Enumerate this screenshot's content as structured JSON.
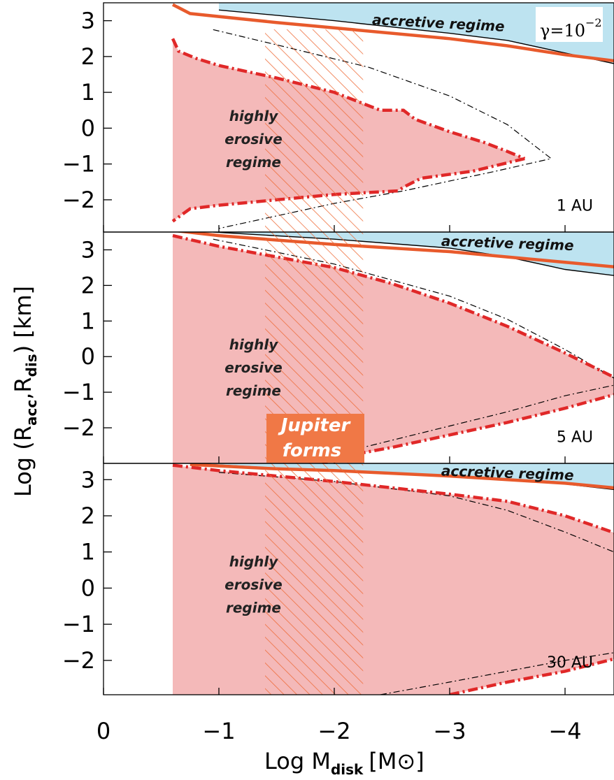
{
  "chart_data": {
    "type": "line",
    "x_axis": {
      "ticks": [
        0,
        -1,
        -2,
        -3,
        -4
      ],
      "tick_labels": [
        "0",
        "−1",
        "−2",
        "−3",
        "−4"
      ],
      "range": [
        0,
        -4.5
      ],
      "label_main": "Log M",
      "label_sub": "disk",
      "label_unit": "[M⊙]"
    },
    "y_axis": {
      "label_main": "Log (R",
      "label_sub1": "acc",
      "label_mid": ",R",
      "label_sub2": "dis",
      "label_end": ") [km]"
    },
    "jupiter_band": {
      "x_range": [
        -1.4,
        -2.25
      ],
      "label_line1": "Jupiter",
      "label_line2": "forms"
    },
    "colors": {
      "accretive_fill": "#bde3f0",
      "erosive_fill": "#f4b9b9",
      "thick_line": "#e85a2c",
      "dash_dot": "#e02828",
      "hatch": "#ee6a35",
      "jupiter_box": "#f07846",
      "thin_line": "#000000"
    },
    "panels": [
      {
        "id": "1au",
        "ylim": [
          -2.9,
          3.5
        ],
        "yticks": [
          3,
          2,
          1,
          0,
          -1,
          -2
        ],
        "ytick_labels": [
          "3",
          "2",
          "1",
          "0",
          "−1",
          "−2"
        ],
        "au_label": "1  AU",
        "accretive_label": "accretive regime",
        "erosive_label": [
          "highly",
          "erosive",
          "regime"
        ],
        "gamma": {
          "base": "γ=10",
          "exponent": "−2"
        },
        "erosive_upper": [
          [
            -0.6,
            2.5
          ],
          [
            -0.65,
            2.15
          ],
          [
            -0.8,
            1.95
          ],
          [
            -1.0,
            1.75
          ],
          [
            -1.5,
            1.4
          ],
          [
            -2.0,
            1.0
          ],
          [
            -2.4,
            0.5
          ],
          [
            -2.6,
            0.5
          ],
          [
            -2.7,
            0.25
          ],
          [
            -3.0,
            -0.1
          ],
          [
            -3.3,
            -0.4
          ],
          [
            -3.5,
            -0.65
          ],
          [
            -3.65,
            -0.85
          ]
        ],
        "erosive_lower": [
          [
            -3.65,
            -0.85
          ],
          [
            -3.2,
            -1.2
          ],
          [
            -2.75,
            -1.4
          ],
          [
            -2.6,
            -1.65
          ],
          [
            -2.55,
            -1.75
          ],
          [
            -2.0,
            -1.85
          ],
          [
            -1.5,
            -2.0
          ],
          [
            -1.0,
            -2.15
          ],
          [
            -0.75,
            -2.25
          ],
          [
            -0.6,
            -2.6
          ]
        ],
        "dashdot_black": [
          [
            -0.95,
            2.75
          ],
          [
            -1.6,
            2.25
          ],
          [
            -2.3,
            1.7
          ],
          [
            -3.0,
            0.9
          ],
          [
            -3.5,
            0.1
          ],
          [
            -3.88,
            -0.85
          ],
          [
            -3.4,
            -1.2
          ],
          [
            -2.6,
            -1.75
          ],
          [
            -2.0,
            -2.1
          ],
          [
            -1.5,
            -2.45
          ],
          [
            -1.0,
            -2.8
          ]
        ],
        "thick_upper": [
          [
            -0.6,
            3.45
          ],
          [
            -0.75,
            3.2
          ],
          [
            -1.5,
            2.95
          ],
          [
            -2.0,
            2.8
          ],
          [
            -3.0,
            2.5
          ],
          [
            -3.5,
            2.3
          ],
          [
            -4.0,
            2.05
          ],
          [
            -4.5,
            1.85
          ]
        ],
        "thin_upper": [
          [
            -1.0,
            3.3
          ],
          [
            -2.0,
            3.0
          ],
          [
            -3.0,
            2.65
          ],
          [
            -3.5,
            2.45
          ],
          [
            -4.0,
            2.1
          ],
          [
            -4.5,
            1.75
          ]
        ],
        "accretive_top": 3.5
      },
      {
        "id": "5au",
        "ylim": [
          -3.0,
          3.5
        ],
        "yticks": [
          3,
          2,
          1,
          0,
          -1,
          -2
        ],
        "ytick_labels": [
          "3",
          "2",
          "1",
          "0",
          "−1",
          "−2"
        ],
        "au_label": "5  AU",
        "accretive_label": "accretive regime",
        "erosive_label": [
          "highly",
          "erosive",
          "regime"
        ],
        "erosive_upper": [
          [
            -0.6,
            3.4
          ],
          [
            -1.0,
            3.1
          ],
          [
            -1.5,
            2.8
          ],
          [
            -2.0,
            2.5
          ],
          [
            -2.5,
            2.05
          ],
          [
            -3.0,
            1.5
          ],
          [
            -3.5,
            0.85
          ],
          [
            -4.0,
            0.1
          ],
          [
            -4.5,
            -0.7
          ]
        ],
        "erosive_lower": [
          [
            -4.5,
            -1.0
          ],
          [
            -4.0,
            -1.45
          ],
          [
            -3.5,
            -1.85
          ],
          [
            -3.0,
            -2.2
          ],
          [
            -2.5,
            -2.55
          ],
          [
            -2.0,
            -2.85
          ],
          [
            -1.9,
            -3.0
          ]
        ],
        "dashdot_black": [
          [
            -0.95,
            3.3
          ],
          [
            -2.0,
            2.6
          ],
          [
            -3.0,
            1.7
          ],
          [
            -3.5,
            1.05
          ],
          [
            -4.0,
            0.2
          ],
          [
            -4.5,
            -0.75
          ],
          [
            -4.0,
            -1.1
          ],
          [
            -3.5,
            -1.55
          ],
          [
            -3.0,
            -1.95
          ],
          [
            -2.5,
            -2.35
          ],
          [
            -2.0,
            -2.75
          ],
          [
            -1.9,
            -2.85
          ]
        ],
        "thick_upper": [
          [
            -0.6,
            3.55
          ],
          [
            -1.0,
            3.4
          ],
          [
            -2.0,
            3.15
          ],
          [
            -3.0,
            2.95
          ],
          [
            -4.0,
            2.65
          ],
          [
            -4.5,
            2.5
          ]
        ],
        "thin_upper": [
          [
            -0.95,
            3.5
          ],
          [
            -2.0,
            3.3
          ],
          [
            -3.0,
            3.05
          ],
          [
            -3.5,
            2.8
          ],
          [
            -4.0,
            2.45
          ],
          [
            -4.5,
            2.25
          ]
        ],
        "accretive_top": 3.5
      },
      {
        "id": "30au",
        "ylim": [
          -2.95,
          3.45
        ],
        "yticks": [
          3,
          2,
          1,
          0,
          -1,
          -2
        ],
        "ytick_labels": [
          "3",
          "2",
          "1",
          "0",
          "−1",
          "−2"
        ],
        "au_label": "30  AU",
        "accretive_label": "accretive regime",
        "erosive_label": [
          "highly",
          "erosive",
          "regime"
        ],
        "erosive_upper": [
          [
            -0.6,
            3.4
          ],
          [
            -1.0,
            3.25
          ],
          [
            -2.0,
            2.95
          ],
          [
            -3.0,
            2.6
          ],
          [
            -3.5,
            2.4
          ],
          [
            -4.0,
            2.0
          ],
          [
            -4.5,
            1.45
          ]
        ],
        "erosive_lower": [
          [
            -3.0,
            -2.95
          ],
          [
            -3.5,
            -2.6
          ],
          [
            -4.0,
            -2.3
          ],
          [
            -4.5,
            -1.9
          ]
        ],
        "dashdot_black": [
          [
            -1.0,
            3.2
          ],
          [
            -2.0,
            2.95
          ],
          [
            -3.0,
            2.55
          ],
          [
            -3.5,
            2.15
          ],
          [
            -4.0,
            1.55
          ],
          [
            -4.5,
            0.9
          ]
        ],
        "dashdot_black_lower": [
          [
            -2.4,
            -2.95
          ],
          [
            -3.0,
            -2.6
          ],
          [
            -3.5,
            -2.3
          ],
          [
            -4.0,
            -2.0
          ],
          [
            -4.5,
            -1.75
          ]
        ],
        "thick_upper": [
          [
            -0.75,
            3.42
          ],
          [
            -1.5,
            3.3
          ],
          [
            -2.0,
            3.25
          ],
          [
            -3.0,
            3.1
          ],
          [
            -4.0,
            2.9
          ],
          [
            -4.5,
            2.75
          ]
        ],
        "thin_upper": [
          [
            -0.75,
            3.45
          ],
          [
            -1.5,
            3.32
          ],
          [
            -2.0,
            3.25
          ],
          [
            -3.0,
            3.08
          ],
          [
            -4.0,
            2.88
          ],
          [
            -4.5,
            2.7
          ]
        ],
        "accretive_top": 3.45
      }
    ]
  }
}
